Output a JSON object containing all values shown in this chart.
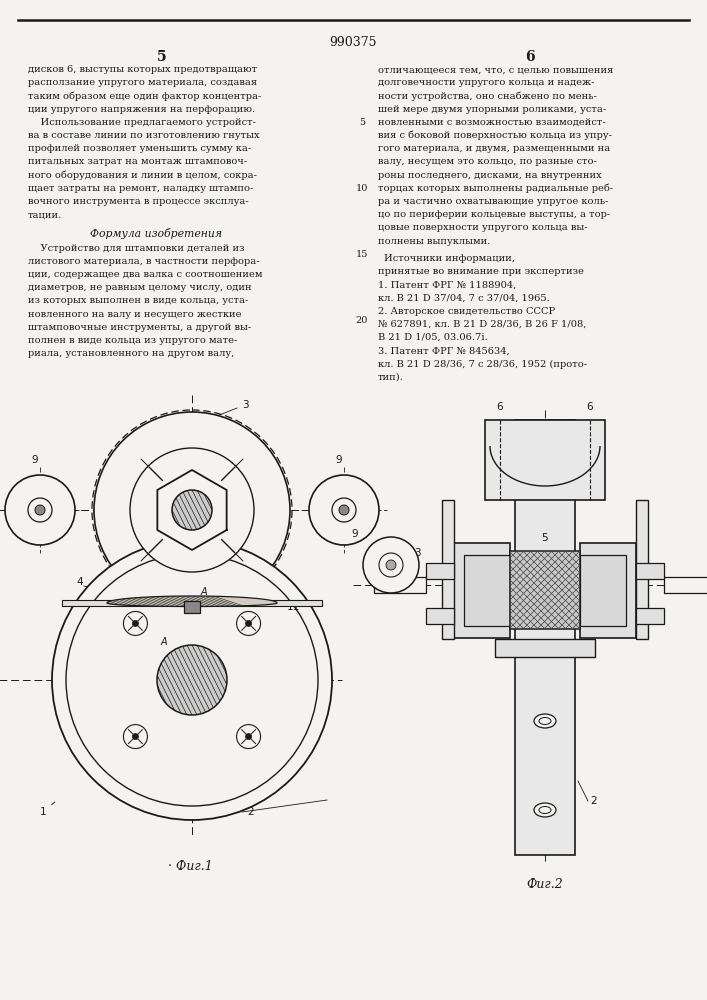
{
  "patent_number": "990375",
  "page_left": "5",
  "page_right": "6",
  "col_left_text": [
    "дисков 6, выступы которых предотвращают",
    "расползание упругого материала, создавая",
    "таким образом еще один фактор концентра-",
    "ции упругого напряжения на перфорацию.",
    "    Использование предлагаемого устройст-",
    "ва в составе линии по изготовлению гнутых",
    "профилей позволяет уменьшить сумму ка-",
    "питальных затрат на монтаж штамповоч-",
    "ного оборудования и линии в целом, сокра-",
    "щает затраты на ремонт, наладку штампо-",
    "вочного инструмента в процессе эксплуа-",
    "тации."
  ],
  "formula_title": "Формула изобретения",
  "formula_text": [
    "    Устройство для штамповки деталей из",
    "листового материала, в частности перфора-",
    "ции, содержащее два валка с соотношением",
    "диаметров, не равным целому числу, один",
    "из которых выполнен в виде кольца, уста-",
    "новленного на валу и несущего жесткие",
    "штамповочные инструменты, а другой вы-",
    "полнен в виде кольца из упругого мате-",
    "риала, установленного на другом валу,"
  ],
  "col_right_text": [
    "отличающееся тем, что, с целью повышения",
    "долговечности упругого кольца и надеж-",
    "ности устройства, оно снабжено по мень-",
    "шей мере двумя упорными роликами, уста-",
    "новленными с возможностью взаимодейст-",
    "вия с боковой поверхностью кольца из упру-",
    "гого материала, и двумя, размещенными на",
    "валу, несущем это кольцо, по разные сто-",
    "роны последнего, дисками, на внутренних",
    "торцах которых выполнены радиальные реб-",
    "ра и частично охватывающие упругое коль-",
    "цо по периферии кольцевые выступы, а тор-",
    "цовые поверхности упругого кольца вы-",
    "полнены выпуклыми."
  ],
  "sources_title": "Источники информации,",
  "sources_subtitle": "принятые во внимание при экспертизе",
  "sources_list": [
    "1. Патент ФРГ № 1188904,",
    "кл. В 21 D 37/04, 7 с 37/04, 1965.",
    "2. Авторское свидетельство СССР",
    "№ 627891, кл. В 21 D 28/36, В 26 F 1/08,",
    "В 21 D 1/05, 03.06.7i.",
    "3. Патент ФРГ № 845634,",
    "кл. В 21 D 28/36, 7 с 28/36, 1952 (прото-",
    "тип)."
  ],
  "fig1_caption": "· Фиг.1",
  "fig2_caption": "Фиг.2",
  "bg_color": "#f5f3ef",
  "text_color": "#1a1a1a",
  "line_color": "#1a1a1a"
}
